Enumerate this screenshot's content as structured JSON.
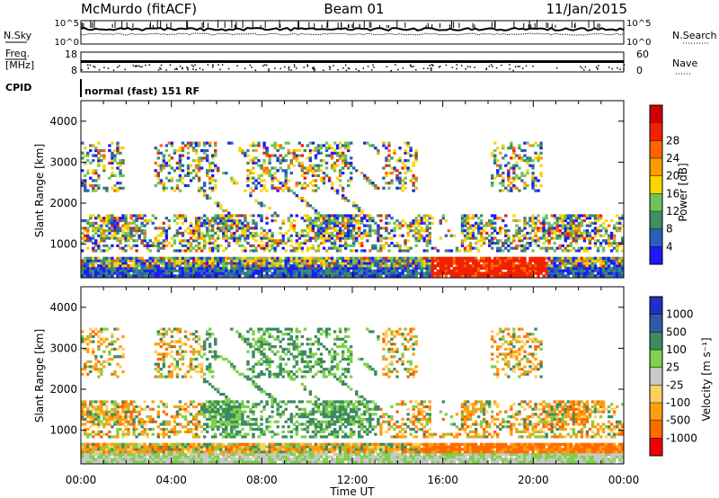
{
  "header": {
    "station": "McMurdo (fitACF)",
    "beam": "Beam 01",
    "date": "11/Jan/2015",
    "mode": "normal (fast) 151 RF"
  },
  "top_panels": {
    "nsky_label": "N.Sky",
    "nsearch_label": "N.Search",
    "freq_label_1": "Freq.",
    "freq_label_2": "[MHz]",
    "nave_label": "Nave",
    "cpid_label": "CPID",
    "nsky_ticks": [
      "10^5",
      "10^0"
    ],
    "nsearch_ticks": [
      "10^5",
      "10^0"
    ],
    "freq_ticks": [
      "18",
      "8"
    ],
    "nave_ticks": [
      "60",
      "0"
    ]
  },
  "colors": {
    "power": [
      "#1a1aff",
      "#2a5fb5",
      "#3e8f62",
      "#71c25a",
      "#ffd400",
      "#ff9d00",
      "#ff6400",
      "#f02000",
      "#cc0000"
    ],
    "velocity": [
      "#ee0000",
      "#ff6a00",
      "#ff9f10",
      "#ffcf60",
      "#c8c8c8",
      "#7fd04a",
      "#3d8a62",
      "#2e5ba8",
      "#2030c0"
    ]
  },
  "chart_data": [
    {
      "type": "heatmap",
      "name": "power",
      "ylabel": "Slant Range [km]",
      "ylim": [
        180,
        4500
      ],
      "y_ticks": [
        1000,
        2000,
        3000,
        4000
      ],
      "colorbar_label": "Power [dB]",
      "colorbar_range": [
        0,
        32
      ],
      "colorbar_ticks": [
        4,
        8,
        12,
        16,
        20,
        24,
        28
      ]
    },
    {
      "type": "heatmap",
      "name": "velocity",
      "ylabel": "Slant Range [km]",
      "ylim": [
        180,
        4500
      ],
      "y_ticks": [
        1000,
        2000,
        3000,
        4000
      ],
      "colorbar_label": "Velocity [m s⁻¹]",
      "colorbar_ticks": [
        "-1000",
        "-500",
        "-100",
        "-25",
        "25",
        "100",
        "500",
        "1000"
      ],
      "xlabel": "Time UT",
      "x_ticks": [
        "00:00",
        "04:00",
        "08:00",
        "12:00",
        "16:00",
        "20:00",
        "00:00"
      ]
    }
  ]
}
